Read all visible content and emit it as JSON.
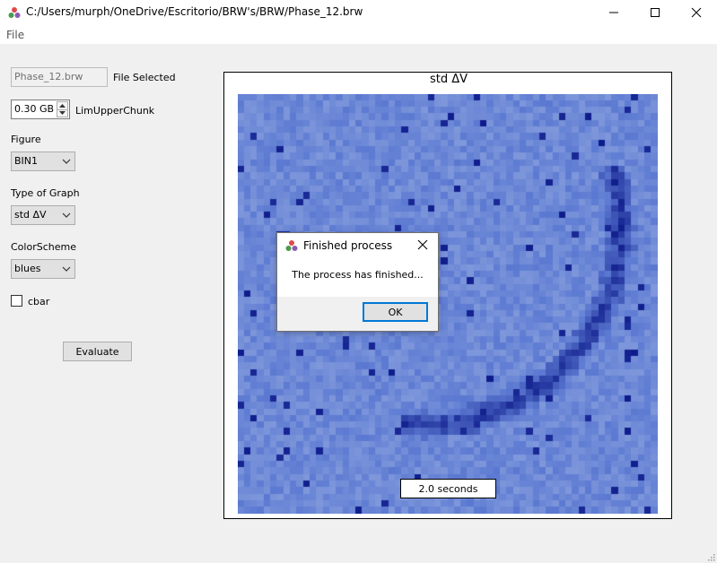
{
  "window": {
    "title": "C:/Users/murph/OneDrive/Escritorio/BRW's/BRW/Phase_12.brw",
    "icon": "app-dots-icon",
    "controls": [
      "minimize-icon",
      "maximize-icon",
      "close-icon"
    ]
  },
  "menu": {
    "file": "File"
  },
  "form": {
    "file_value": "Phase_12.brw",
    "file_label": "File Selected",
    "chunk_value": "0.30 GB",
    "chunk_label": "LimUpperChunk",
    "figure_label": "Figure",
    "figure_value": "BIN1",
    "graph_label": "Type of Graph",
    "graph_value": "std ΔV",
    "color_label": "ColorScheme",
    "color_value": "blues",
    "cbar_label": "cbar",
    "cbar_checked": false,
    "evaluate_label": "Evaluate"
  },
  "plot": {
    "title": "std ΔV",
    "time_label": "2.0 seconds",
    "colors": {
      "low": "#a3b6e4",
      "mid": "#5c7ad2",
      "high": "#0d1a8a"
    }
  },
  "chart_data": {
    "type": "heatmap",
    "title": "std ΔV",
    "colorscheme": "blues",
    "grid": [
      64,
      64
    ],
    "annotation": "2.0 seconds",
    "colorbar": false,
    "feature": "arc of high values on the right and lower center of the grid"
  },
  "dialog": {
    "title": "Finished process",
    "message": "The process has finished...",
    "ok_label": "OK"
  }
}
